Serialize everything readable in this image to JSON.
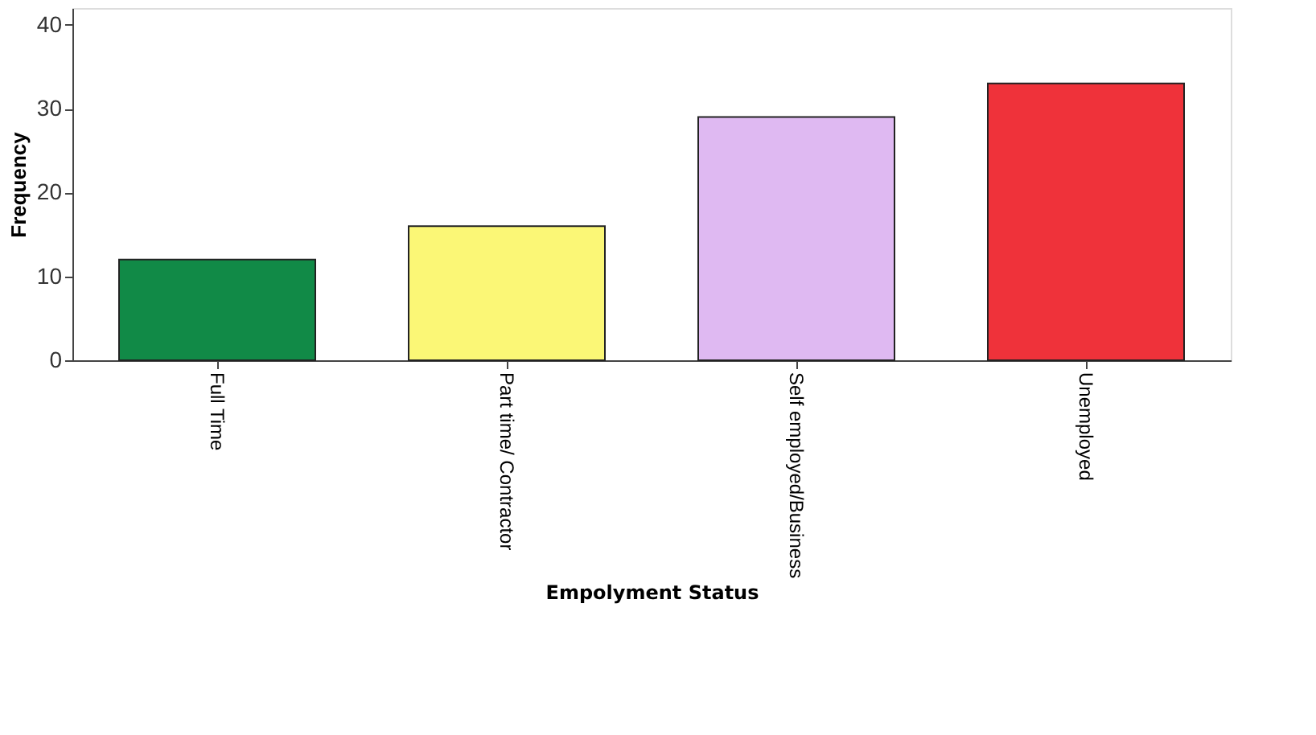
{
  "chart_data": {
    "type": "bar",
    "xlabel": "Empolyment Status",
    "ylabel": "Frequency",
    "categories": [
      "Full Time",
      "Part time/ Contractor",
      "Self employed/Business",
      "Unemployed"
    ],
    "values": [
      12,
      16,
      29,
      33
    ],
    "colors": [
      "#118a47",
      "#fbf776",
      "#dfb9f2",
      "#ef323a"
    ],
    "ylim": [
      0,
      42
    ],
    "yticks": [
      0,
      10,
      20,
      30,
      40
    ],
    "grid": false,
    "legend": false
  }
}
